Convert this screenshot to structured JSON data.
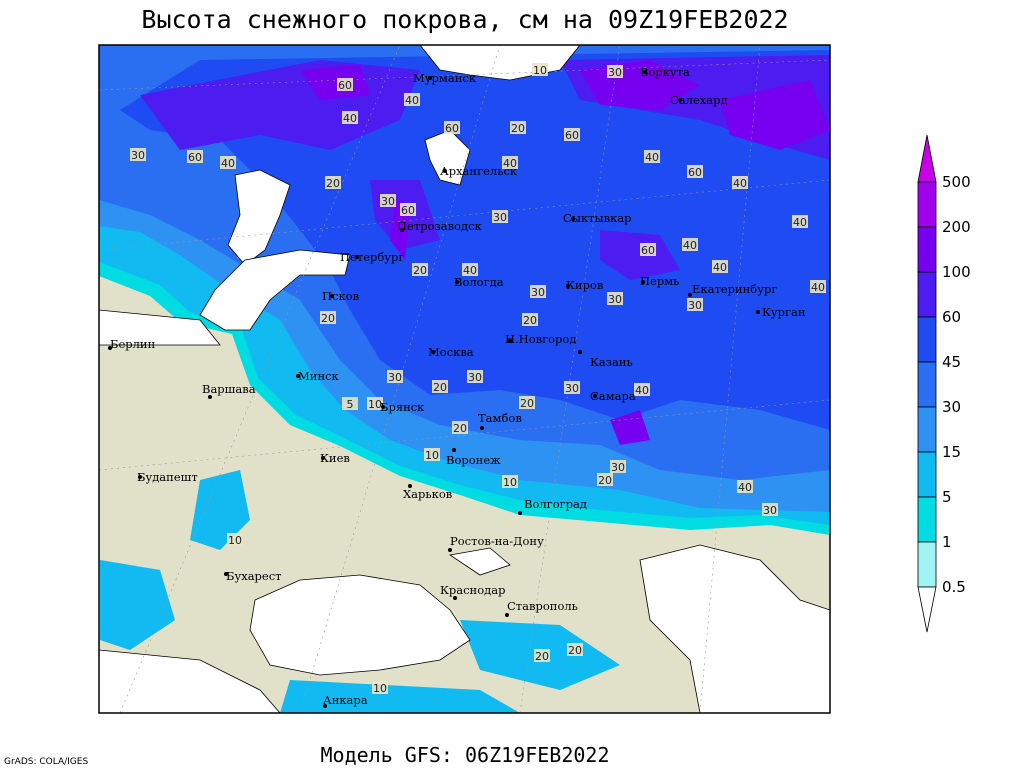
{
  "header": {
    "title": "Высота снежного покрова, см на 09Z19FEB2022"
  },
  "footer": {
    "model": "Модель GFS: 06Z19FEB2022",
    "credit": "GrADS: COLA/IGES"
  },
  "legend": {
    "levels": [
      500,
      200,
      100,
      60,
      45,
      30,
      15,
      5,
      1,
      0.5
    ],
    "colors": [
      "#c800e8",
      "#a000ec",
      "#7800f0",
      "#4c1cf0",
      "#1e4cf2",
      "#2a6ef2",
      "#2e92f2",
      "#12baf2",
      "#00dce2",
      "#a0f4f4",
      "#ffffff"
    ]
  },
  "map": {
    "land_color": "#e1e0c8",
    "cities": [
      "Мурманск",
      "Воркута",
      "Салехард",
      "Архангельск",
      "Сыктывкар",
      "Петрозаводск",
      "Петербург",
      "Вологда",
      "Киров",
      "Пермь",
      "Екатеринбург",
      "Курган",
      "Псков",
      "Берлин",
      "Москва",
      "Н.Новгород",
      "Казань",
      "Минск",
      "Варшава",
      "Брянск",
      "Самара",
      "Тамбов",
      "Киев",
      "Воронеж",
      "Будапешт",
      "Харьков",
      "Волгоград",
      "Ростов-на-Дону",
      "Бухарест",
      "Краснодар",
      "Ставрополь",
      "Анкара"
    ],
    "contour_labels": [
      "10",
      "30",
      "60",
      "40",
      "40",
      "60",
      "20",
      "30",
      "60",
      "60",
      "40",
      "40",
      "20",
      "30",
      "40",
      "60",
      "40",
      "30",
      "40",
      "60",
      "60",
      "40",
      "40",
      "30",
      "40",
      "20",
      "30",
      "30",
      "20",
      "30",
      "40",
      "30",
      "20",
      "20",
      "30",
      "40",
      "10",
      "20",
      "30",
      "10",
      "40",
      "20",
      "10",
      "30",
      "20",
      "10",
      "20",
      "20",
      "5",
      "10"
    ]
  }
}
